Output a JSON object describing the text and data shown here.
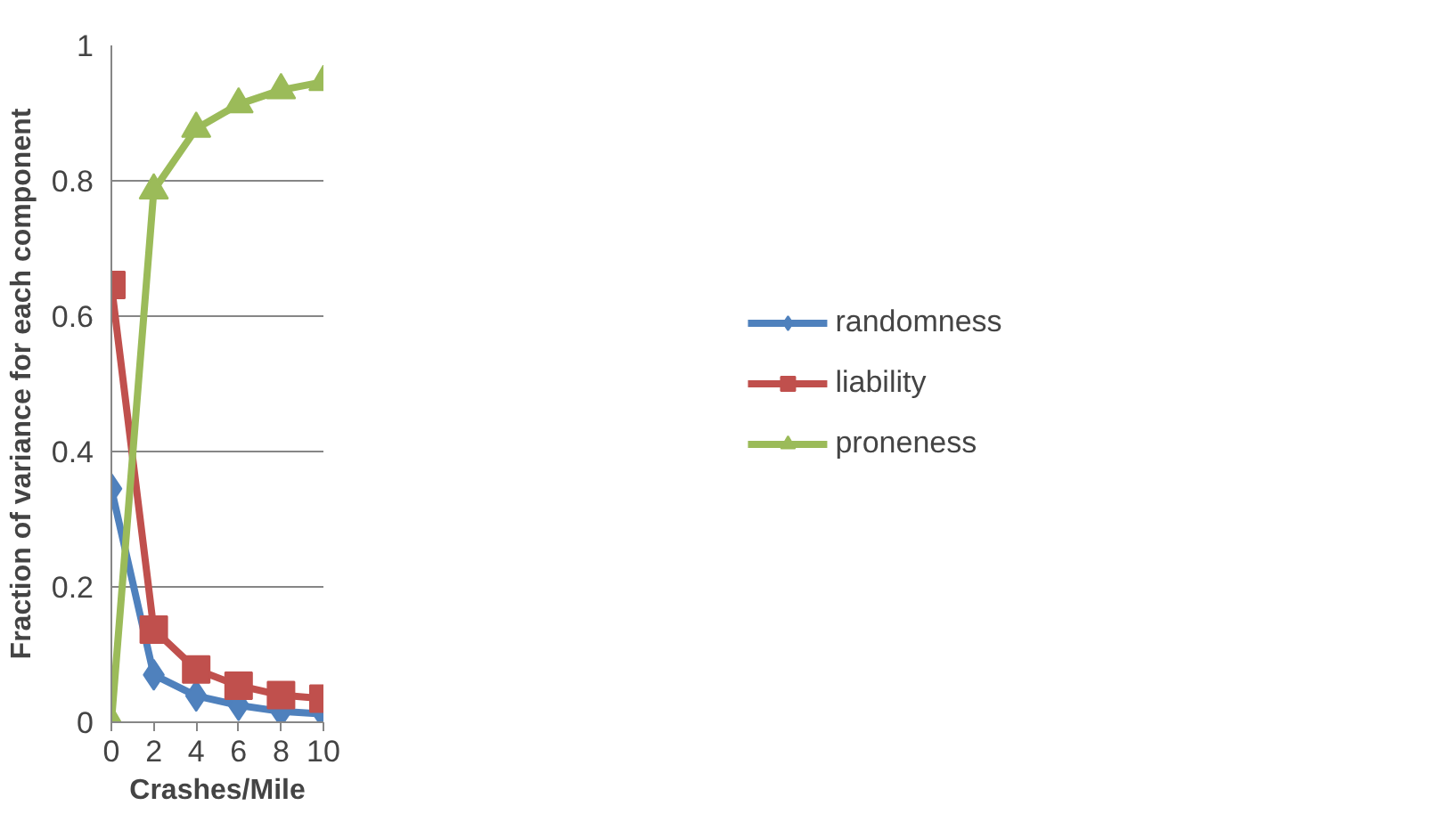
{
  "chart_data": {
    "type": "line",
    "xlabel": "Crashes/Mile",
    "ylabel": "Fraction of variance for each component",
    "x": [
      0,
      2,
      4,
      6,
      8,
      10
    ],
    "series": [
      {
        "name": "randomness",
        "color": "#4f81bd",
        "marker": "diamond",
        "values": [
          0.345,
          0.07,
          0.039,
          0.025,
          0.016,
          0.012
        ]
      },
      {
        "name": "liability",
        "color": "#c0504d",
        "marker": "square",
        "values": [
          0.646,
          0.137,
          0.078,
          0.054,
          0.04,
          0.035
        ]
      },
      {
        "name": "proneness",
        "color": "#9bbb59",
        "marker": "triangle",
        "values": [
          0,
          0.786,
          0.877,
          0.913,
          0.934,
          0.946
        ]
      }
    ],
    "xlim": [
      0,
      10
    ],
    "xticks": [
      0,
      2,
      4,
      6,
      8,
      10
    ],
    "ylim": [
      0,
      1
    ],
    "yticks": [
      0,
      0.2,
      0.4,
      0.6,
      0.8,
      1
    ],
    "grid": "y",
    "legend": "right",
    "line_style": "solid"
  }
}
